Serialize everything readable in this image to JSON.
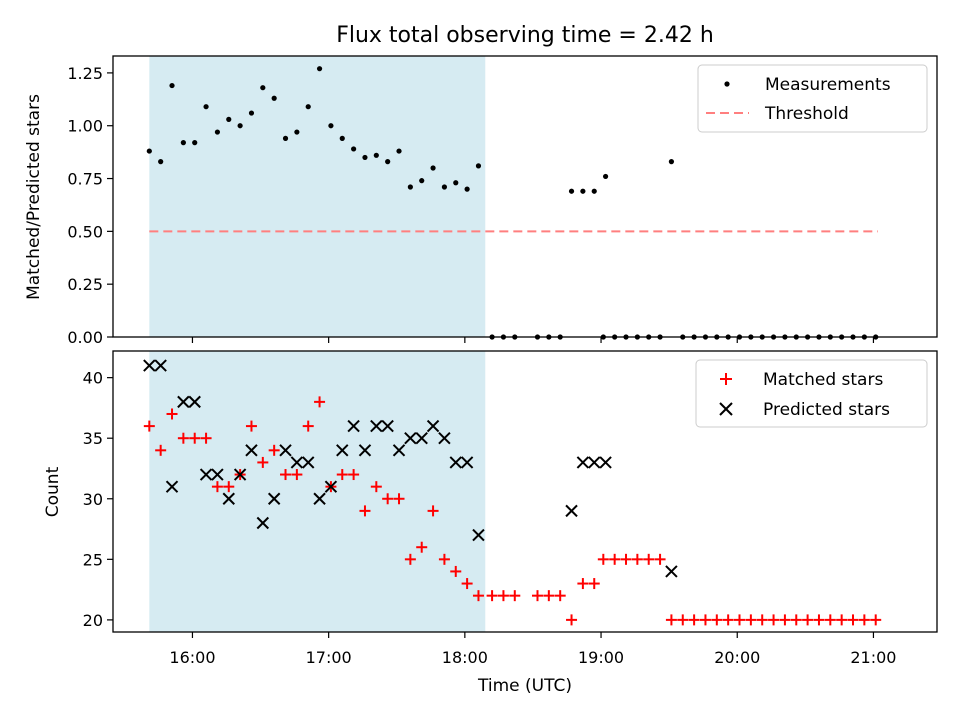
{
  "figure": {
    "title": "Flux total observing time = 2.42 h"
  },
  "colors": {
    "shade": "#add8e6",
    "measurement": "#000000",
    "threshold": "#ff7f7f",
    "matched": "#ff0000",
    "predicted": "#000000"
  },
  "chart_data": [
    {
      "type": "scatter",
      "ylabel": "Matched/Predicted stars",
      "xlim": [
        "15:25",
        "21:28"
      ],
      "ylim": [
        0,
        1.33
      ],
      "yticks": [
        {
          "v": 0.0,
          "label": "0.00"
        },
        {
          "v": 0.25,
          "label": "0.25"
        },
        {
          "v": 0.5,
          "label": "0.50"
        },
        {
          "v": 0.75,
          "label": "0.75"
        },
        {
          "v": 1.0,
          "label": "1.00"
        },
        {
          "v": 1.25,
          "label": "1.25"
        }
      ],
      "shaded_span": [
        "15:41",
        "18:09"
      ],
      "threshold": {
        "name": "Threshold",
        "value": 0.5,
        "x": [
          "15:41",
          "21:02"
        ]
      },
      "legend": {
        "position": "top-right",
        "entries": [
          "Measurements",
          "Threshold"
        ]
      },
      "series": [
        {
          "name": "Measurements",
          "points": [
            [
              "15:41",
              0.88
            ],
            [
              "15:46",
              0.83
            ],
            [
              "15:51",
              1.19
            ],
            [
              "15:56",
              0.92
            ],
            [
              "16:01",
              0.92
            ],
            [
              "16:06",
              1.09
            ],
            [
              "16:11",
              0.97
            ],
            [
              "16:16",
              1.03
            ],
            [
              "16:21",
              1.0
            ],
            [
              "16:26",
              1.06
            ],
            [
              "16:31",
              1.18
            ],
            [
              "16:36",
              1.13
            ],
            [
              "16:41",
              0.94
            ],
            [
              "16:46",
              0.97
            ],
            [
              "16:51",
              1.09
            ],
            [
              "16:56",
              1.27
            ],
            [
              "17:01",
              1.0
            ],
            [
              "17:06",
              0.94
            ],
            [
              "17:11",
              0.89
            ],
            [
              "17:16",
              0.85
            ],
            [
              "17:21",
              0.86
            ],
            [
              "17:26",
              0.83
            ],
            [
              "17:31",
              0.88
            ],
            [
              "17:36",
              0.71
            ],
            [
              "17:41",
              0.74
            ],
            [
              "17:46",
              0.8
            ],
            [
              "17:51",
              0.71
            ],
            [
              "17:56",
              0.73
            ],
            [
              "18:01",
              0.7
            ],
            [
              "18:06",
              0.81
            ],
            [
              "18:12",
              0
            ],
            [
              "18:17",
              0
            ],
            [
              "18:22",
              0
            ],
            [
              "18:32",
              0
            ],
            [
              "18:37",
              0
            ],
            [
              "18:42",
              0
            ],
            [
              "18:47",
              0.69
            ],
            [
              "18:52",
              0.69
            ],
            [
              "18:57",
              0.69
            ],
            [
              "19:02",
              0.76
            ],
            [
              "19:01",
              0
            ],
            [
              "19:06",
              0
            ],
            [
              "19:11",
              0
            ],
            [
              "19:16",
              0
            ],
            [
              "19:21",
              0
            ],
            [
              "19:26",
              0
            ],
            [
              "19:31",
              0.83
            ],
            [
              "19:36",
              0
            ],
            [
              "19:41",
              0
            ],
            [
              "19:46",
              0
            ],
            [
              "19:51",
              0
            ],
            [
              "19:56",
              0
            ],
            [
              "20:01",
              0
            ],
            [
              "20:06",
              0
            ],
            [
              "20:11",
              0
            ],
            [
              "20:16",
              0
            ],
            [
              "20:21",
              0
            ],
            [
              "20:26",
              0
            ],
            [
              "20:31",
              0
            ],
            [
              "20:36",
              0
            ],
            [
              "20:41",
              0
            ],
            [
              "20:46",
              0
            ],
            [
              "20:51",
              0
            ],
            [
              "20:56",
              0
            ],
            [
              "21:01",
              0
            ]
          ]
        }
      ]
    },
    {
      "type": "scatter",
      "xlabel": "Time (UTC)",
      "ylabel": "Count",
      "xlim": [
        "15:25",
        "21:28"
      ],
      "ylim": [
        19,
        42.2
      ],
      "xticks": [
        "16:00",
        "17:00",
        "18:00",
        "19:00",
        "20:00",
        "21:00"
      ],
      "yticks": [
        {
          "v": 20,
          "label": "20"
        },
        {
          "v": 25,
          "label": "25"
        },
        {
          "v": 30,
          "label": "30"
        },
        {
          "v": 35,
          "label": "35"
        },
        {
          "v": 40,
          "label": "40"
        }
      ],
      "shaded_span": [
        "15:41",
        "18:09"
      ],
      "legend": {
        "position": "top-right",
        "entries": [
          "Matched stars",
          "Predicted stars"
        ]
      },
      "series": [
        {
          "name": "Matched stars",
          "points": [
            [
              "15:41",
              36
            ],
            [
              "15:46",
              34
            ],
            [
              "15:51",
              37
            ],
            [
              "15:56",
              35
            ],
            [
              "16:01",
              35
            ],
            [
              "16:06",
              35
            ],
            [
              "16:11",
              31
            ],
            [
              "16:16",
              31
            ],
            [
              "16:21",
              32
            ],
            [
              "16:26",
              36
            ],
            [
              "16:31",
              33
            ],
            [
              "16:36",
              34
            ],
            [
              "16:41",
              32
            ],
            [
              "16:46",
              32
            ],
            [
              "16:51",
              36
            ],
            [
              "16:56",
              38
            ],
            [
              "17:01",
              31
            ],
            [
              "17:06",
              32
            ],
            [
              "17:11",
              32
            ],
            [
              "17:16",
              29
            ],
            [
              "17:21",
              31
            ],
            [
              "17:26",
              30
            ],
            [
              "17:31",
              30
            ],
            [
              "17:36",
              25
            ],
            [
              "17:41",
              26
            ],
            [
              "17:46",
              29
            ],
            [
              "17:51",
              25
            ],
            [
              "17:56",
              24
            ],
            [
              "18:01",
              23
            ],
            [
              "18:06",
              22
            ],
            [
              "18:12",
              22
            ],
            [
              "18:17",
              22
            ],
            [
              "18:22",
              22
            ],
            [
              "18:32",
              22
            ],
            [
              "18:37",
              22
            ],
            [
              "18:42",
              22
            ],
            [
              "18:47",
              20
            ],
            [
              "18:52",
              23
            ],
            [
              "18:57",
              23
            ],
            [
              "19:01",
              25
            ],
            [
              "19:06",
              25
            ],
            [
              "19:11",
              25
            ],
            [
              "19:16",
              25
            ],
            [
              "19:21",
              25
            ],
            [
              "19:26",
              25
            ],
            [
              "19:31",
              20
            ],
            [
              "19:36",
              20
            ],
            [
              "19:41",
              20
            ],
            [
              "19:46",
              20
            ],
            [
              "19:51",
              20
            ],
            [
              "19:56",
              20
            ],
            [
              "20:01",
              20
            ],
            [
              "20:06",
              20
            ],
            [
              "20:11",
              20
            ],
            [
              "20:16",
              20
            ],
            [
              "20:21",
              20
            ],
            [
              "20:26",
              20
            ],
            [
              "20:31",
              20
            ],
            [
              "20:36",
              20
            ],
            [
              "20:41",
              20
            ],
            [
              "20:46",
              20
            ],
            [
              "20:51",
              20
            ],
            [
              "20:56",
              20
            ],
            [
              "21:01",
              20
            ]
          ]
        },
        {
          "name": "Predicted stars",
          "points": [
            [
              "15:41",
              41
            ],
            [
              "15:46",
              41
            ],
            [
              "15:51",
              31
            ],
            [
              "15:56",
              38
            ],
            [
              "16:01",
              38
            ],
            [
              "16:06",
              32
            ],
            [
              "16:11",
              32
            ],
            [
              "16:16",
              30
            ],
            [
              "16:21",
              32
            ],
            [
              "16:26",
              34
            ],
            [
              "16:31",
              28
            ],
            [
              "16:36",
              30
            ],
            [
              "16:41",
              34
            ],
            [
              "16:46",
              33
            ],
            [
              "16:51",
              33
            ],
            [
              "16:56",
              30
            ],
            [
              "17:01",
              31
            ],
            [
              "17:06",
              34
            ],
            [
              "17:11",
              36
            ],
            [
              "17:16",
              34
            ],
            [
              "17:21",
              36
            ],
            [
              "17:26",
              36
            ],
            [
              "17:31",
              34
            ],
            [
              "17:36",
              35
            ],
            [
              "17:41",
              35
            ],
            [
              "17:46",
              36
            ],
            [
              "17:51",
              35
            ],
            [
              "17:56",
              33
            ],
            [
              "18:01",
              33
            ],
            [
              "18:06",
              27
            ],
            [
              "18:47",
              29
            ],
            [
              "18:52",
              33
            ],
            [
              "18:57",
              33
            ],
            [
              "19:02",
              33
            ],
            [
              "19:31",
              24
            ]
          ]
        }
      ]
    }
  ]
}
